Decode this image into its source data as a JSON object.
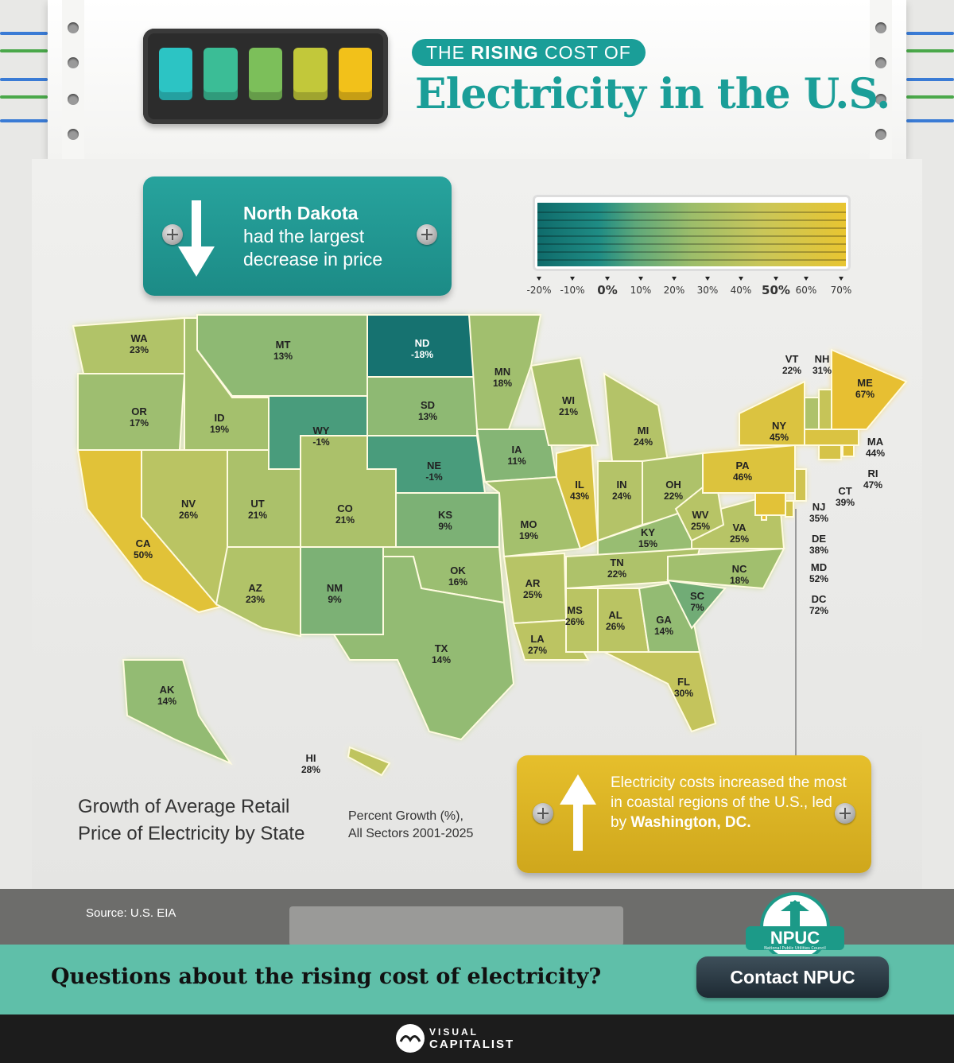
{
  "header": {
    "pill_prefix": "THE",
    "pill_bold": "RISING",
    "pill_suffix": "COST OF",
    "title": "Electricity in the U.S."
  },
  "callout_decrease": {
    "bold": "North Dakota",
    "text": "had the largest decrease in price"
  },
  "legend": {
    "ticks": [
      "-20%",
      "-10%",
      "0%",
      "10%",
      "20%",
      "30%",
      "40%",
      "50%",
      "60%",
      "70%"
    ],
    "colors": [
      "#0f6b6b",
      "#1f8c84",
      "#5fa87a",
      "#9cbd6a",
      "#c8c65a",
      "#e8c531"
    ]
  },
  "states": [
    {
      "code": "WA",
      "value": "23%"
    },
    {
      "code": "OR",
      "value": "17%"
    },
    {
      "code": "CA",
      "value": "50%"
    },
    {
      "code": "ID",
      "value": "19%"
    },
    {
      "code": "NV",
      "value": "26%"
    },
    {
      "code": "MT",
      "value": "13%"
    },
    {
      "code": "WY",
      "value": "-1%"
    },
    {
      "code": "UT",
      "value": "21%"
    },
    {
      "code": "AZ",
      "value": "23%"
    },
    {
      "code": "CO",
      "value": "21%"
    },
    {
      "code": "NM",
      "value": "9%"
    },
    {
      "code": "ND",
      "value": "-18%"
    },
    {
      "code": "SD",
      "value": "13%"
    },
    {
      "code": "NE",
      "value": "-1%"
    },
    {
      "code": "KS",
      "value": "9%"
    },
    {
      "code": "OK",
      "value": "16%"
    },
    {
      "code": "TX",
      "value": "14%"
    },
    {
      "code": "MN",
      "value": "18%"
    },
    {
      "code": "IA",
      "value": "11%"
    },
    {
      "code": "MO",
      "value": "19%"
    },
    {
      "code": "AR",
      "value": "25%"
    },
    {
      "code": "LA",
      "value": "27%"
    },
    {
      "code": "WI",
      "value": "21%"
    },
    {
      "code": "IL",
      "value": "43%"
    },
    {
      "code": "MI",
      "value": "24%"
    },
    {
      "code": "IN",
      "value": "24%"
    },
    {
      "code": "OH",
      "value": "22%"
    },
    {
      "code": "KY",
      "value": "15%"
    },
    {
      "code": "TN",
      "value": "22%"
    },
    {
      "code": "MS",
      "value": "26%"
    },
    {
      "code": "AL",
      "value": "26%"
    },
    {
      "code": "GA",
      "value": "14%"
    },
    {
      "code": "FL",
      "value": "30%"
    },
    {
      "code": "SC",
      "value": "7%"
    },
    {
      "code": "NC",
      "value": "18%"
    },
    {
      "code": "VA",
      "value": "25%"
    },
    {
      "code": "WV",
      "value": "25%"
    },
    {
      "code": "PA",
      "value": "46%"
    },
    {
      "code": "NY",
      "value": "45%"
    },
    {
      "code": "VT",
      "value": "22%"
    },
    {
      "code": "NH",
      "value": "31%"
    },
    {
      "code": "ME",
      "value": "67%"
    },
    {
      "code": "MA",
      "value": "44%"
    },
    {
      "code": "RI",
      "value": "47%"
    },
    {
      "code": "CT",
      "value": "39%"
    },
    {
      "code": "NJ",
      "value": "35%"
    },
    {
      "code": "DE",
      "value": "38%"
    },
    {
      "code": "MD",
      "value": "52%"
    },
    {
      "code": "DC",
      "value": "72%"
    },
    {
      "code": "AK",
      "value": "14%"
    },
    {
      "code": "HI",
      "value": "28%"
    }
  ],
  "map_caption": {
    "line1": "Growth of Average Retail",
    "line2": "Price of Electricity by State",
    "sub1": "Percent Growth (%),",
    "sub2": "All Sectors 2001-2025"
  },
  "callout_increase": {
    "text": "Electricity costs increased the most in coastal regions of the U.S., led by",
    "bold": "Washington, DC."
  },
  "source": "Source: U.S. EIA",
  "npuc": {
    "badge": "NPUC",
    "sub": "National Public Utilities Council"
  },
  "cta": {
    "question": "Questions about the rising cost of electricity?",
    "button": "Contact NPUC"
  },
  "footer": {
    "brand_top": "VISUAL",
    "brand_bottom": "CAPITALIST"
  }
}
